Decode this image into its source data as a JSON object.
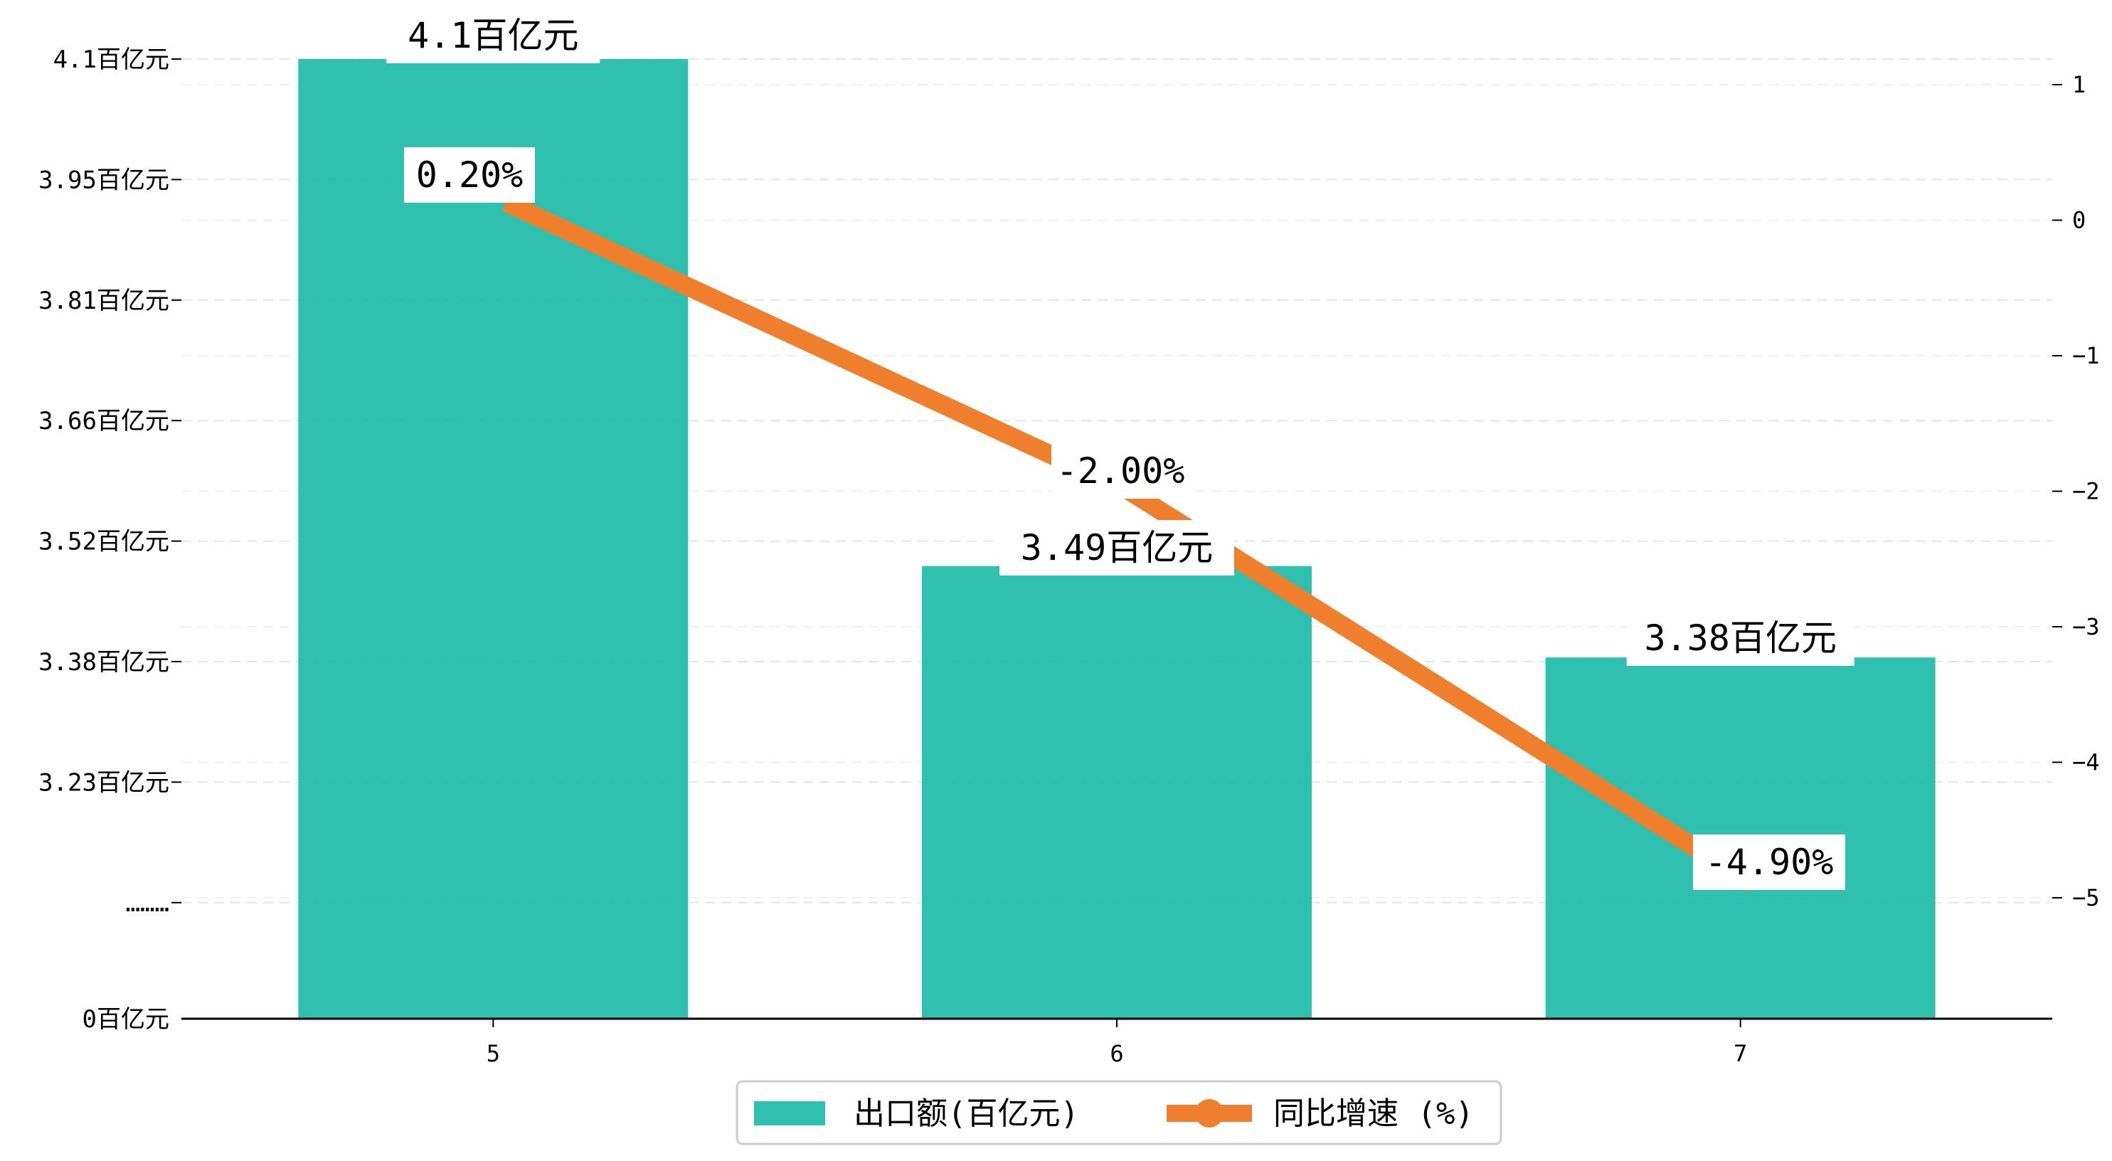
{
  "chart_data": {
    "type": "bar",
    "categories": [
      "5",
      "6",
      "7"
    ],
    "series": [
      {
        "name": "出口额(百亿元)",
        "type": "bar",
        "axis": "left",
        "values": [
          4.1,
          3.49,
          3.38
        ],
        "labels": [
          "4.1百亿元",
          "3.49百亿元",
          "3.38百亿元"
        ],
        "color": "#1ab9a7"
      },
      {
        "name": "同比增速 (%)",
        "type": "line",
        "axis": "right",
        "values": [
          0.2,
          -2.0,
          -4.9
        ],
        "labels": [
          "0.20%",
          "-2.00%",
          "-4.90%"
        ],
        "color": "#f07f2d"
      }
    ],
    "y_left": {
      "ticks": [
        0,
        3.23,
        3.38,
        3.52,
        3.66,
        3.81,
        3.95,
        4.1
      ],
      "tick_labels": [
        "0百亿元",
        "3.23百亿元",
        "3.38百亿元",
        "3.52百亿元",
        "3.66百亿元",
        "3.81百亿元",
        "3.95百亿元",
        "4.1百亿元"
      ],
      "break_label": "………",
      "broken_axis": true
    },
    "y_right": {
      "ticks": [
        1,
        0,
        -1,
        -2,
        -3,
        -4,
        -5
      ],
      "tick_labels": [
        "1",
        "0",
        "−1",
        "−2",
        "−3",
        "−4",
        "−5"
      ],
      "ylim": [
        -5.9,
        1.2
      ]
    },
    "grid": "horizontal dashed",
    "legend": "bottom-center",
    "title": "",
    "xlabel": "",
    "ylabel": ""
  }
}
